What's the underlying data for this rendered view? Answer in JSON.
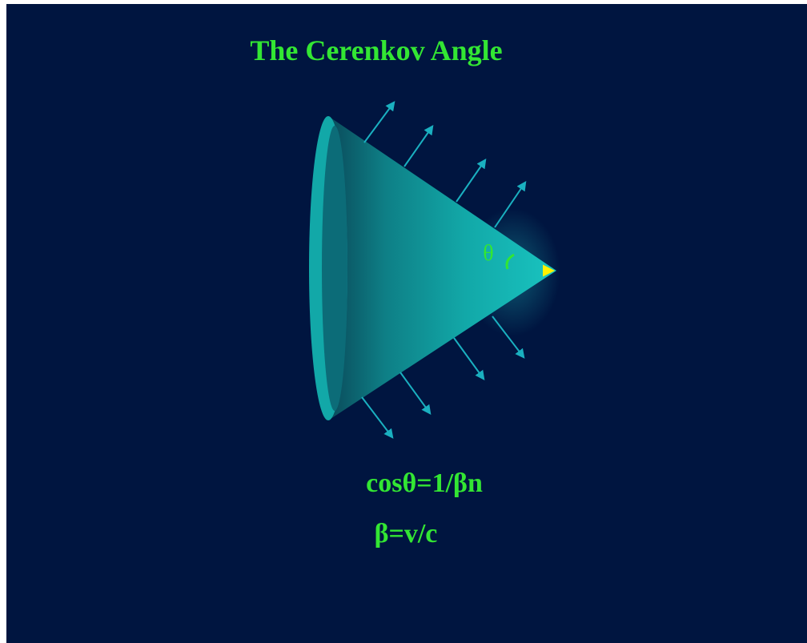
{
  "title": "The Cerenkov Angle",
  "angle_label": "θ",
  "formulas": [
    "cosθ=1/βn",
    "β=v/c"
  ]
}
